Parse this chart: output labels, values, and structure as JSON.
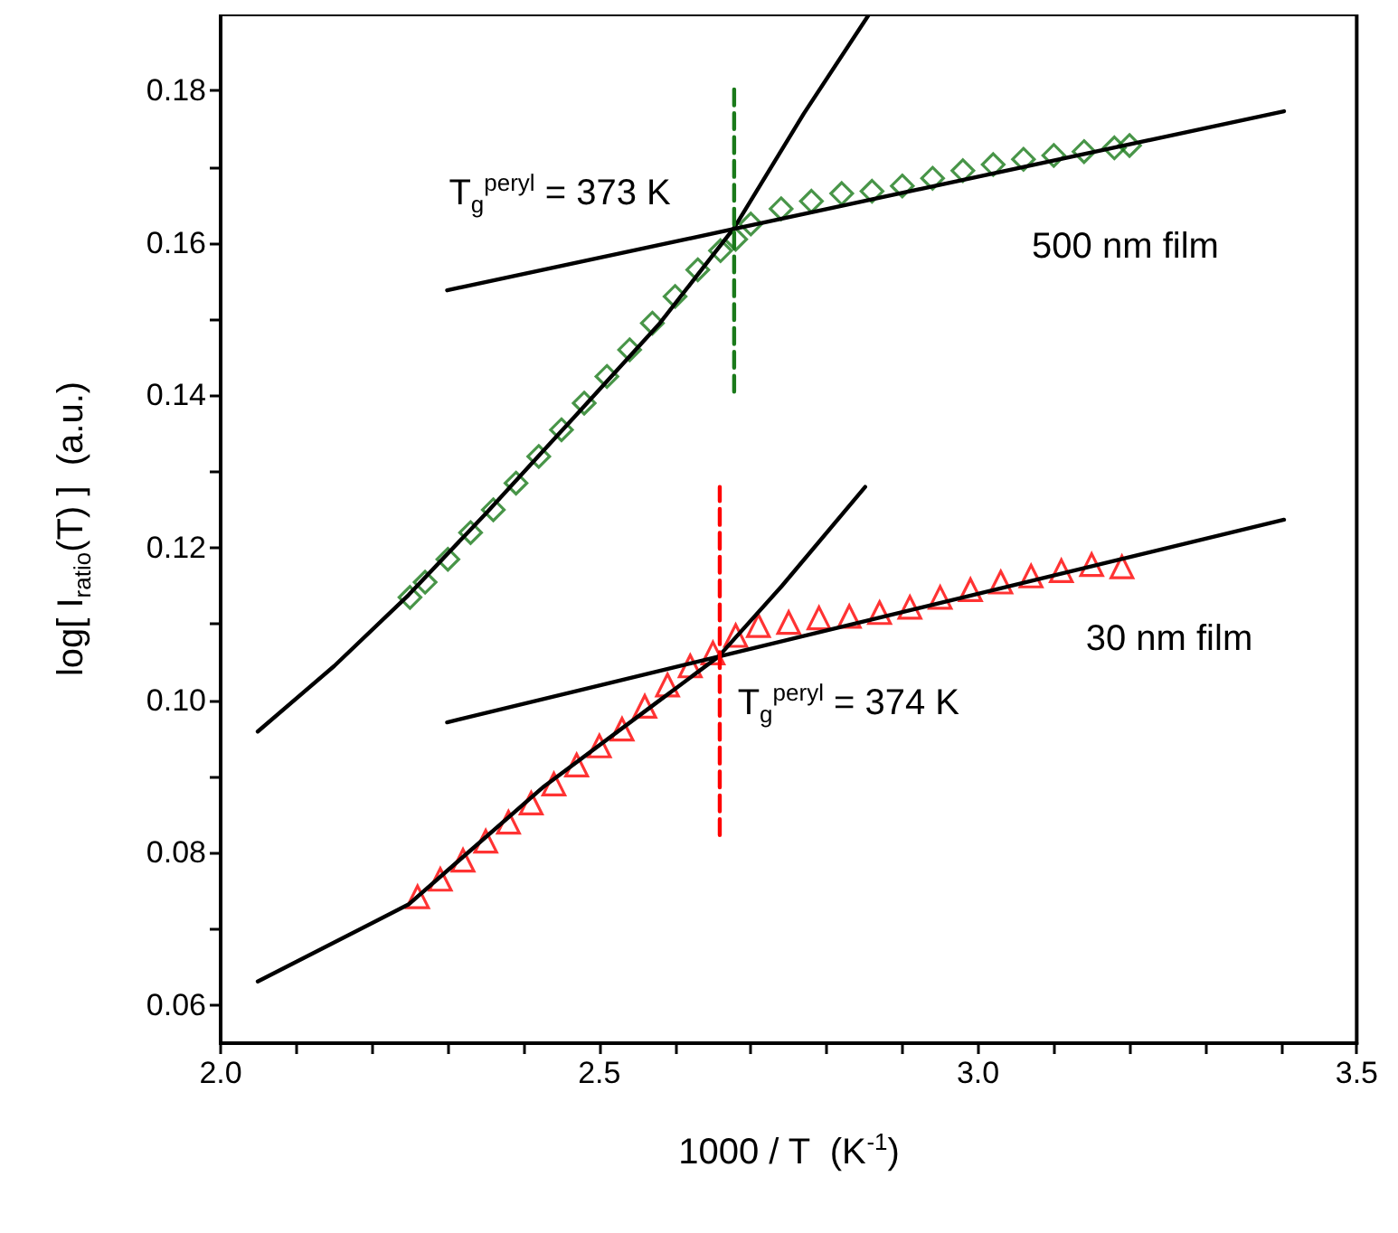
{
  "chart_data": {
    "type": "scatter",
    "xlabel": "1000 / T  (K$^{-1}$)",
    "ylabel": "log[ I$_{ratio}$(T) ]  (a.u.)",
    "xlim": [
      2.0,
      3.5
    ],
    "ylim": [
      0.055,
      0.19
    ],
    "xticks": [
      {
        "value": 2,
        "label": "2.0"
      },
      {
        "value": 2.1,
        "label": null
      },
      {
        "value": 2.2,
        "label": null
      },
      {
        "value": 2.3,
        "label": null
      },
      {
        "value": 2.4,
        "label": null
      },
      {
        "value": 2.5,
        "label": "2.5"
      },
      {
        "value": 2.6,
        "label": null
      },
      {
        "value": 2.7,
        "label": null
      },
      {
        "value": 2.8,
        "label": null
      },
      {
        "value": 2.9,
        "label": null
      },
      {
        "value": 3,
        "label": "3.0"
      },
      {
        "value": 3.1,
        "label": null
      },
      {
        "value": 3.2,
        "label": null
      },
      {
        "value": 3.3,
        "label": null
      },
      {
        "value": 3.4,
        "label": null
      },
      {
        "value": 3.5,
        "label": "3.5"
      }
    ],
    "yticks": [
      0.06,
      {
        "value": 0.07,
        "label": null
      },
      0.08,
      {
        "value": 0.09,
        "label": null
      },
      {
        "value": 0.1,
        "label": "0.10"
      },
      {
        "value": 0.11,
        "label": null
      },
      0.12,
      {
        "value": 0.13,
        "label": null
      },
      0.14,
      {
        "value": 0.15,
        "label": null
      },
      0.16,
      {
        "value": 0.17,
        "label": null
      },
      0.18
    ],
    "grid": false,
    "series": [
      {
        "name": "500 nm film",
        "marker": "diamond",
        "color": "#1a7a1a",
        "x": [
          2.25,
          2.27,
          2.3,
          2.33,
          2.36,
          2.39,
          2.42,
          2.45,
          2.48,
          2.51,
          2.54,
          2.57,
          2.6,
          2.63,
          2.66,
          2.68,
          2.7,
          2.74,
          2.78,
          2.82,
          2.86,
          2.9,
          2.94,
          2.98,
          3.02,
          3.06,
          3.1,
          3.14,
          3.18,
          3.2
        ],
        "values": [
          0.1135,
          0.1155,
          0.1185,
          0.122,
          0.125,
          0.1285,
          0.132,
          0.1355,
          0.139,
          0.1425,
          0.146,
          0.1495,
          0.153,
          0.1565,
          0.159,
          0.1605,
          0.1625,
          0.1645,
          0.1655,
          0.1665,
          0.1668,
          0.1675,
          0.1685,
          0.1695,
          0.1703,
          0.171,
          0.1715,
          0.172,
          0.1725,
          0.1728
        ]
      },
      {
        "name": "30 nm film",
        "marker": "triangle",
        "color": "#ff0000",
        "x": [
          2.26,
          2.29,
          2.32,
          2.35,
          2.38,
          2.41,
          2.44,
          2.47,
          2.5,
          2.53,
          2.56,
          2.59,
          2.62,
          2.65,
          2.68,
          2.71,
          2.75,
          2.79,
          2.83,
          2.87,
          2.91,
          2.95,
          2.99,
          3.03,
          3.07,
          3.11,
          3.15,
          3.19
        ],
        "values": [
          0.0742,
          0.0765,
          0.079,
          0.0815,
          0.084,
          0.0865,
          0.089,
          0.0915,
          0.094,
          0.0962,
          0.0992,
          0.102,
          0.1045,
          0.1062,
          0.1085,
          0.1098,
          0.1102,
          0.1108,
          0.111,
          0.1115,
          0.1122,
          0.1135,
          0.1145,
          0.1155,
          0.1163,
          0.117,
          0.1178,
          0.1175
        ]
      },
      {
        "type": "line",
        "marker": "none",
        "line_style": "solid",
        "color": "#000000",
        "x": [
          2.049,
          2.15,
          2.248,
          2.35,
          2.469,
          2.58,
          2.678,
          2.77,
          2.856
        ],
        "values": [
          0.0959,
          0.1045,
          0.1138,
          0.1245,
          0.1374,
          0.1495,
          0.162,
          0.177,
          0.19
        ]
      },
      {
        "type": "line",
        "marker": "none",
        "line_style": "solid",
        "color": "#000000",
        "x": [
          2.299,
          3.404
        ],
        "values": [
          0.1538,
          0.1773
        ]
      },
      {
        "type": "line",
        "marker": "none",
        "line_style": "solid",
        "color": "#000000",
        "x": [
          2.049,
          2.248,
          2.427,
          2.573,
          2.657,
          2.741,
          2.851
        ],
        "values": [
          0.0631,
          0.0732,
          0.0887,
          0.0995,
          0.1057,
          0.115,
          0.128
        ]
      },
      {
        "type": "line",
        "marker": "none",
        "line_style": "solid",
        "color": "#000000",
        "x": [
          2.299,
          3.404
        ],
        "values": [
          0.0971,
          0.1237
        ]
      },
      {
        "type": "line",
        "marker": "none",
        "line_style": "dashed",
        "color": "#1a7a1a",
        "x": [
          2.678,
          2.678
        ],
        "values": [
          0.1405,
          0.1805
        ]
      },
      {
        "type": "line",
        "marker": "none",
        "line_style": "dashed",
        "color": "#ff0000",
        "x": [
          2.659,
          2.659
        ],
        "values": [
          0.0823,
          0.128
        ]
      }
    ],
    "annotations": [
      "T$_{g}$$^{peryl}$ = 373 K",
      "T$_{g}$$^{peryl}$ = 374 K"
    ]
  }
}
